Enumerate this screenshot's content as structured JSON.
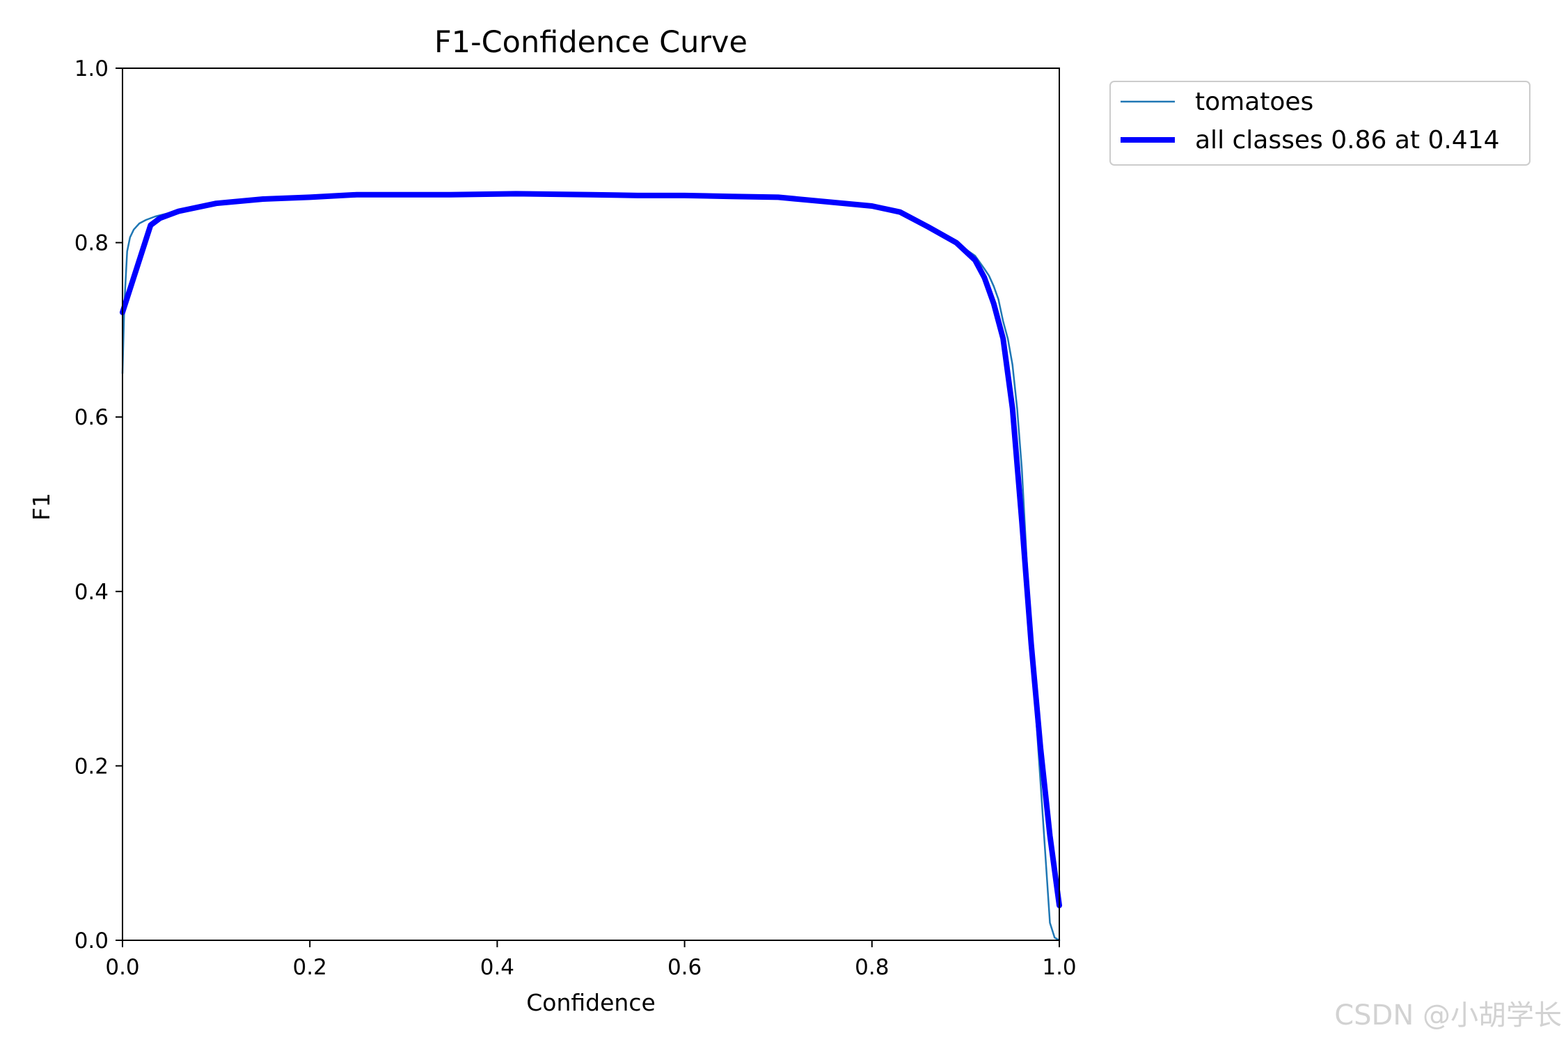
{
  "chart_data": {
    "type": "line",
    "title": "F1-Confidence Curve",
    "xlabel": "Confidence",
    "ylabel": "F1",
    "xlim": [
      0.0,
      1.0
    ],
    "ylim": [
      0.0,
      1.0
    ],
    "xticks": [
      "0.0",
      "0.2",
      "0.4",
      "0.6",
      "0.8",
      "1.0"
    ],
    "yticks": [
      "0.0",
      "0.2",
      "0.4",
      "0.6",
      "0.8",
      "1.0"
    ],
    "grid": false,
    "legend_position": "outside-top-right",
    "series": [
      {
        "name": "tomatoes",
        "color": "#1f77b4",
        "x": [
          0.0,
          0.002,
          0.005,
          0.008,
          0.012,
          0.018,
          0.025,
          0.035,
          0.05,
          0.08,
          0.12,
          0.16,
          0.2,
          0.25,
          0.3,
          0.35,
          0.42,
          0.5,
          0.55,
          0.6,
          0.65,
          0.7,
          0.75,
          0.8,
          0.83,
          0.86,
          0.89,
          0.91,
          0.92,
          0.925,
          0.93,
          0.935,
          0.94,
          0.945,
          0.95,
          0.955,
          0.96,
          0.965,
          0.97,
          0.975,
          0.98,
          0.985,
          0.99,
          0.995,
          1.0
        ],
        "y": [
          0.65,
          0.73,
          0.79,
          0.806,
          0.815,
          0.822,
          0.826,
          0.83,
          0.834,
          0.84,
          0.846,
          0.85,
          0.852,
          0.855,
          0.855,
          0.855,
          0.856,
          0.855,
          0.854,
          0.854,
          0.853,
          0.852,
          0.847,
          0.842,
          0.835,
          0.818,
          0.8,
          0.785,
          0.77,
          0.762,
          0.75,
          0.735,
          0.71,
          0.69,
          0.66,
          0.61,
          0.54,
          0.44,
          0.34,
          0.26,
          0.18,
          0.1,
          0.02,
          0.003,
          0.0
        ]
      },
      {
        "name": "all classes 0.86 at 0.414",
        "color": "#0000ff",
        "x": [
          0.0,
          0.03,
          0.04,
          0.06,
          0.1,
          0.15,
          0.2,
          0.25,
          0.3,
          0.35,
          0.42,
          0.5,
          0.55,
          0.6,
          0.65,
          0.7,
          0.75,
          0.8,
          0.83,
          0.86,
          0.89,
          0.91,
          0.92,
          0.93,
          0.94,
          0.95,
          0.96,
          0.97,
          0.98,
          0.99,
          1.0
        ],
        "y": [
          0.72,
          0.82,
          0.828,
          0.836,
          0.845,
          0.85,
          0.852,
          0.855,
          0.855,
          0.855,
          0.856,
          0.855,
          0.854,
          0.854,
          0.853,
          0.852,
          0.847,
          0.842,
          0.835,
          0.818,
          0.8,
          0.78,
          0.76,
          0.73,
          0.69,
          0.61,
          0.48,
          0.34,
          0.22,
          0.12,
          0.04
        ]
      }
    ]
  },
  "watermark": "CSDN @小胡学长"
}
